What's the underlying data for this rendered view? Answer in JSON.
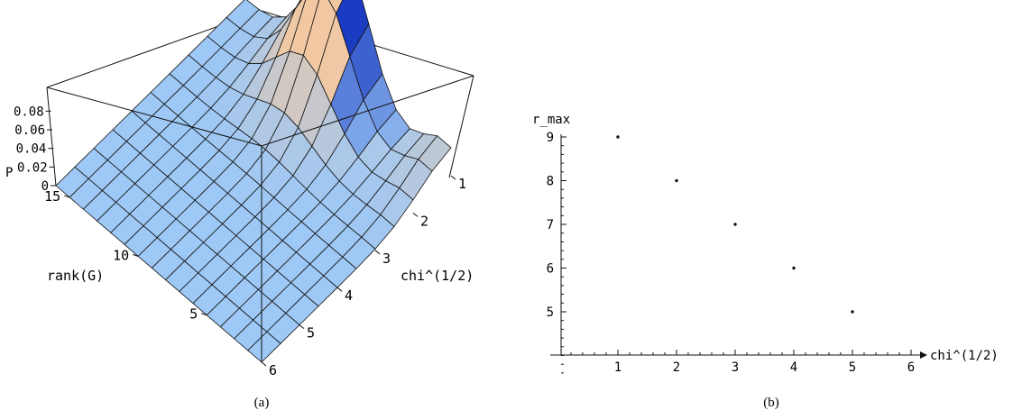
{
  "chart_data": [
    {
      "type": "surface3d",
      "caption": "(a)",
      "xlabel": "chi^(1/2)",
      "ylabel": "rank(G)",
      "zlabel": "P",
      "x_ticks": [
        "1",
        "2",
        "3",
        "4",
        "5",
        "6"
      ],
      "y_ticks": [
        "5",
        "10",
        "15"
      ],
      "z_ticks": [
        "0",
        "0.02",
        "0.04",
        "0.06",
        "0.08"
      ],
      "xlim": [
        1,
        6
      ],
      "ylim": [
        1,
        16
      ],
      "zlim": [
        0,
        0.09
      ],
      "peak": {
        "x": 1,
        "y": 9,
        "z": 0.09
      },
      "surface_colors": {
        "low": "#9ec8f5",
        "high": "#1b3cc2",
        "warm": "#f2c8a2"
      }
    },
    {
      "type": "scatter",
      "caption": "(b)",
      "xlabel": "chi^(1/2)",
      "ylabel": "r_max",
      "x_ticks": [
        "1",
        "2",
        "3",
        "4",
        "5",
        "6"
      ],
      "y_ticks": [
        "5",
        "6",
        "7",
        "8",
        "9"
      ],
      "xlim": [
        0,
        6.2
      ],
      "ylim": [
        3.4,
        9.1
      ],
      "x": [
        1,
        2,
        3,
        4,
        5
      ],
      "y": [
        9,
        8,
        7,
        6,
        5
      ]
    }
  ]
}
